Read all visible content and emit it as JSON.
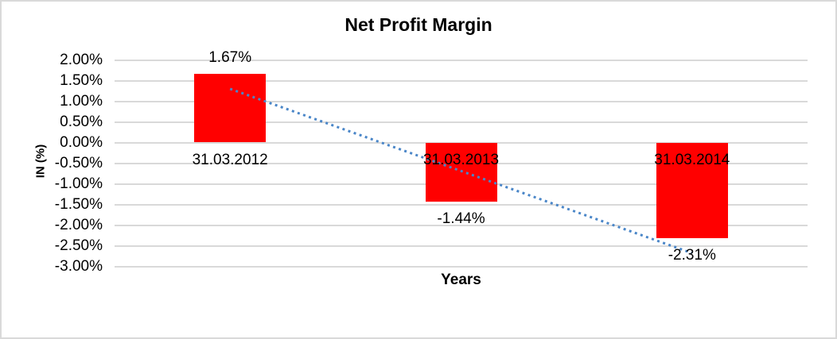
{
  "chart_data": {
    "type": "bar",
    "title": "Net Profit Margin",
    "xlabel": "Years",
    "ylabel": "IN (%)",
    "categories": [
      "31.03.2012",
      "31.03.2013",
      "31.03.2014"
    ],
    "values": [
      1.67,
      -1.44,
      -2.31
    ],
    "data_labels": [
      "1.67%",
      "-1.44%",
      "-2.31%"
    ],
    "y_ticks": [
      "2.00%",
      "1.50%",
      "1.00%",
      "0.50%",
      "0.00%",
      "-0.50%",
      "-1.00%",
      "-1.50%",
      "-2.00%",
      "-2.50%",
      "-3.00%"
    ],
    "y_tick_values": [
      2.0,
      1.5,
      1.0,
      0.5,
      0.0,
      -0.5,
      -1.0,
      -1.5,
      -2.0,
      -2.5,
      -3.0
    ],
    "ylim": [
      -3.0,
      2.0
    ],
    "grid": true,
    "legend": "none",
    "bar_color": "#ff0000",
    "gridline_color": "#d9d9d9",
    "trendline": {
      "type": "linear",
      "style": "dotted",
      "color": "#4a86c8",
      "start_value": 1.3,
      "end_value": -2.68
    }
  }
}
